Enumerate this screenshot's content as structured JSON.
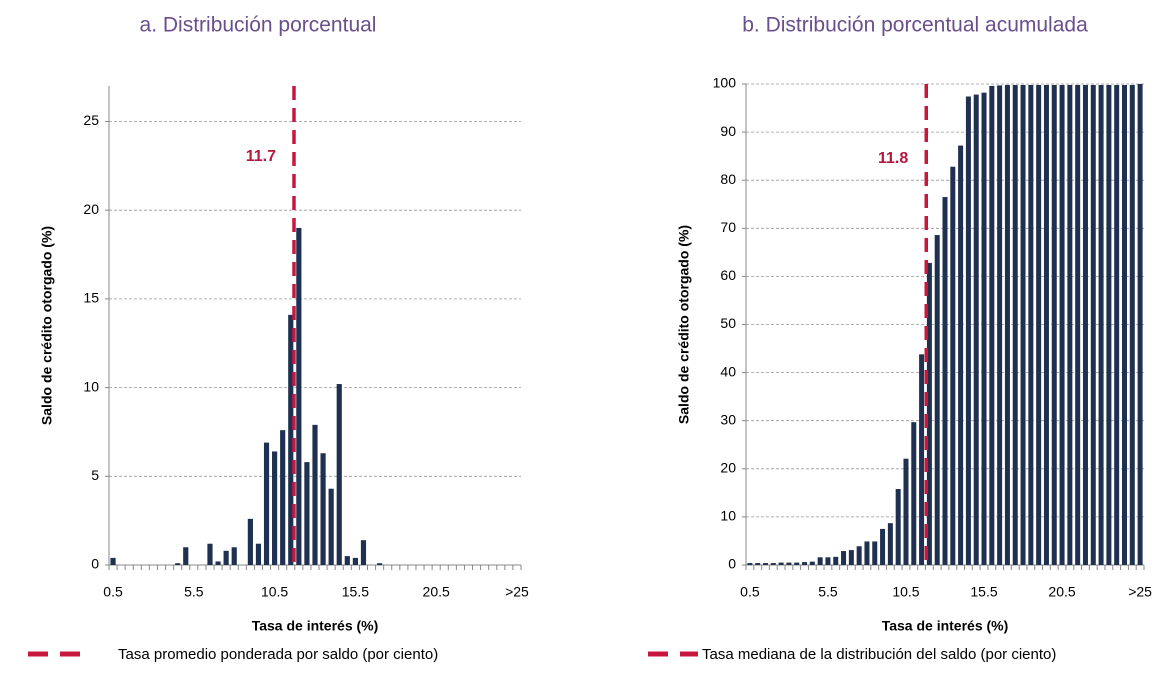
{
  "chart_data": [
    {
      "type": "bar",
      "title": "a. Distribución porcentual",
      "x_label": "Tasa de interés (%)",
      "y_label": "Saldo de crédito otorgado (%)",
      "categories": [
        "0.5",
        null,
        null,
        null,
        null,
        null,
        null,
        null,
        null,
        null,
        "5.5",
        null,
        null,
        null,
        null,
        null,
        null,
        null,
        null,
        null,
        "10.5",
        null,
        null,
        null,
        null,
        null,
        null,
        null,
        null,
        null,
        "15.5",
        null,
        null,
        null,
        null,
        null,
        null,
        null,
        null,
        null,
        "20.5",
        null,
        null,
        null,
        null,
        null,
        null,
        null,
        null,
        null,
        ">25"
      ],
      "values": [
        0.4,
        0,
        0,
        0,
        0,
        0,
        0,
        0,
        0.1,
        1.0,
        0,
        0,
        1.2,
        0.2,
        0.8,
        1.0,
        0,
        2.6,
        1.2,
        6.9,
        6.4,
        7.6,
        14.1,
        19.0,
        5.8,
        7.9,
        6.3,
        4.3,
        10.2,
        0.5,
        0.4,
        1.4,
        0,
        0.1,
        0,
        0,
        0,
        0,
        0,
        0,
        0,
        0,
        0,
        0,
        0,
        0,
        0,
        0,
        0,
        0,
        0
      ],
      "color": "#1f3050",
      "ylim": [
        0,
        27
      ],
      "yticks": [
        0,
        5,
        10,
        15,
        20,
        25
      ],
      "grid": true,
      "reference_line": {
        "value": 11.7,
        "color": "#c8173f",
        "legend": "Tasa promedio ponderada por saldo (por ciento)"
      }
    },
    {
      "type": "bar",
      "title": "b. Distribución porcentual acumulada",
      "x_label": "Tasa de interés (%)",
      "y_label": "Saldo de crédito otorgado (%)",
      "categories": [
        "0.5",
        null,
        null,
        null,
        null,
        null,
        null,
        null,
        null,
        null,
        "5.5",
        null,
        null,
        null,
        null,
        null,
        null,
        null,
        null,
        null,
        "10.5",
        null,
        null,
        null,
        null,
        null,
        null,
        null,
        null,
        null,
        "15.5",
        null,
        null,
        null,
        null,
        null,
        null,
        null,
        null,
        null,
        "20.5",
        null,
        null,
        null,
        null,
        null,
        null,
        null,
        null,
        null,
        ">25"
      ],
      "values": [
        0.4,
        0.4,
        0.4,
        0.4,
        0.5,
        0.5,
        0.5,
        0.6,
        0.7,
        1.6,
        1.6,
        1.7,
        2.9,
        3.1,
        3.9,
        4.9,
        4.9,
        7.5,
        8.7,
        15.8,
        22.1,
        29.7,
        43.8,
        62.8,
        68.6,
        76.5,
        82.8,
        87.2,
        97.4,
        97.8,
        98.2,
        99.6,
        99.7,
        99.8,
        99.8,
        99.8,
        99.8,
        99.8,
        99.8,
        99.8,
        99.8,
        99.8,
        99.8,
        99.8,
        99.8,
        99.8,
        99.8,
        99.8,
        99.8,
        99.8,
        100
      ],
      "color": "#1f3050",
      "ylim": [
        0,
        100
      ],
      "yticks": [
        0,
        10,
        20,
        30,
        40,
        50,
        60,
        70,
        80,
        90,
        100
      ],
      "grid": true,
      "reference_line": {
        "value": 11.8,
        "color": "#c8173f",
        "legend": "Tasa mediana de la distribución del saldo (por ciento)"
      }
    }
  ]
}
